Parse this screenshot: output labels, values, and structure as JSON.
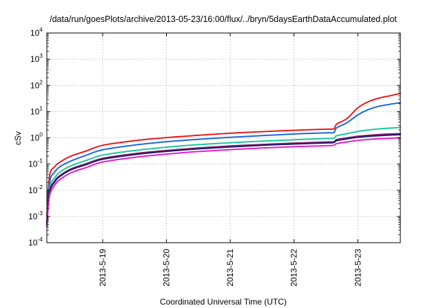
{
  "chart_data": {
    "type": "line",
    "title": "/data/run/goesPlots/archive/2013-05-23/16:00/flux/../bryn/5daysEarthDataAccumulated.plot",
    "xlabel": "Coordinated Universal Time (UTC)",
    "ylabel": "cSv",
    "x_axis": "date",
    "xlim": [
      "2013-05-18T03:00",
      "2013-05-23T16:00"
    ],
    "x_ticks": [
      "2013-5-19",
      "2013-5-20",
      "2013-5-21",
      "2013-5-22",
      "2013-5-23"
    ],
    "x_tick_dates": [
      "2013-05-19T00:00",
      "2013-05-20T00:00",
      "2013-05-21T00:00",
      "2013-05-22T00:00",
      "2013-05-23T00:00"
    ],
    "y_scale": "log",
    "ylim": [
      0.0001,
      10000
    ],
    "y_ticks": [
      {
        "base": "10",
        "exp": "-4"
      },
      {
        "base": "10",
        "exp": "-3"
      },
      {
        "base": "10",
        "exp": "-2"
      },
      {
        "base": "10",
        "exp": "-1"
      },
      {
        "base": "10",
        "exp": "0"
      },
      {
        "base": "10",
        "exp": "1"
      },
      {
        "base": "10",
        "exp": "2"
      },
      {
        "base": "10",
        "exp": "3"
      },
      {
        "base": "10",
        "exp": "4"
      }
    ],
    "grid": true,
    "legend": "none",
    "series": [
      {
        "color": "#e8191b",
        "points": [
          [
            "2013-05-18T03:00",
            0.001
          ],
          [
            "2013-05-18T04:00",
            0.035
          ],
          [
            "2013-05-18T06:00",
            0.08
          ],
          [
            "2013-05-18T08:00",
            0.12
          ],
          [
            "2013-05-18T12:00",
            0.2
          ],
          [
            "2013-05-18T18:00",
            0.32
          ],
          [
            "2013-05-19T00:00",
            0.52
          ],
          [
            "2013-05-19T12:00",
            0.78
          ],
          [
            "2013-05-20T00:00",
            1.02
          ],
          [
            "2013-05-20T12:00",
            1.25
          ],
          [
            "2013-05-21T00:00",
            1.5
          ],
          [
            "2013-05-21T12:00",
            1.72
          ],
          [
            "2013-05-22T00:00",
            1.95
          ],
          [
            "2013-05-22T12:00",
            2.15
          ],
          [
            "2013-05-22T15:00",
            2.2
          ],
          [
            "2013-05-22T16:00",
            3.3
          ],
          [
            "2013-05-22T20:00",
            5.5
          ],
          [
            "2013-05-23T00:00",
            14
          ],
          [
            "2013-05-23T04:00",
            24
          ],
          [
            "2013-05-23T08:00",
            33
          ],
          [
            "2013-05-23T12:00",
            40
          ],
          [
            "2013-05-23T16:00",
            50
          ]
        ]
      },
      {
        "color": "#1a67e0",
        "points": [
          [
            "2013-05-18T03:00",
            0.0006
          ],
          [
            "2013-05-18T04:00",
            0.02
          ],
          [
            "2013-05-18T06:00",
            0.05
          ],
          [
            "2013-05-18T08:00",
            0.08
          ],
          [
            "2013-05-18T12:00",
            0.13
          ],
          [
            "2013-05-18T18:00",
            0.22
          ],
          [
            "2013-05-19T00:00",
            0.35
          ],
          [
            "2013-05-19T12:00",
            0.53
          ],
          [
            "2013-05-20T00:00",
            0.71
          ],
          [
            "2013-05-20T12:00",
            0.88
          ],
          [
            "2013-05-21T00:00",
            1.05
          ],
          [
            "2013-05-21T12:00",
            1.22
          ],
          [
            "2013-05-22T00:00",
            1.4
          ],
          [
            "2013-05-22T12:00",
            1.55
          ],
          [
            "2013-05-22T15:00",
            1.6
          ],
          [
            "2013-05-22T16:00",
            2.4
          ],
          [
            "2013-05-22T20:00",
            3.8
          ],
          [
            "2013-05-23T00:00",
            7.5
          ],
          [
            "2013-05-23T04:00",
            12
          ],
          [
            "2013-05-23T08:00",
            16
          ],
          [
            "2013-05-23T12:00",
            19
          ],
          [
            "2013-05-23T16:00",
            22
          ]
        ]
      },
      {
        "color": "#19c79b",
        "points": [
          [
            "2013-05-18T03:00",
            0.0005
          ],
          [
            "2013-05-18T04:00",
            0.012
          ],
          [
            "2013-05-18T06:00",
            0.03
          ],
          [
            "2013-05-18T08:00",
            0.05
          ],
          [
            "2013-05-18T12:00",
            0.085
          ],
          [
            "2013-05-18T18:00",
            0.14
          ],
          [
            "2013-05-19T00:00",
            0.22
          ],
          [
            "2013-05-19T12:00",
            0.33
          ],
          [
            "2013-05-20T00:00",
            0.44
          ],
          [
            "2013-05-20T12:00",
            0.55
          ],
          [
            "2013-05-21T00:00",
            0.65
          ],
          [
            "2013-05-21T12:00",
            0.75
          ],
          [
            "2013-05-22T00:00",
            0.85
          ],
          [
            "2013-05-22T12:00",
            0.94
          ],
          [
            "2013-05-22T15:00",
            0.97
          ],
          [
            "2013-05-22T16:00",
            1.2
          ],
          [
            "2013-05-22T20:00",
            1.45
          ],
          [
            "2013-05-23T00:00",
            1.75
          ],
          [
            "2013-05-23T04:00",
            2.0
          ],
          [
            "2013-05-23T08:00",
            2.2
          ],
          [
            "2013-05-23T12:00",
            2.35
          ],
          [
            "2013-05-23T16:00",
            2.5
          ]
        ]
      },
      {
        "color": "#8a1a5e",
        "points": [
          [
            "2013-05-18T03:00",
            0.0005
          ],
          [
            "2013-05-18T04:00",
            0.009
          ],
          [
            "2013-05-18T06:00",
            0.023
          ],
          [
            "2013-05-18T08:00",
            0.037
          ],
          [
            "2013-05-18T12:00",
            0.065
          ],
          [
            "2013-05-18T18:00",
            0.105
          ],
          [
            "2013-05-19T00:00",
            0.165
          ],
          [
            "2013-05-19T12:00",
            0.25
          ],
          [
            "2013-05-20T00:00",
            0.33
          ],
          [
            "2013-05-20T12:00",
            0.41
          ],
          [
            "2013-05-21T00:00",
            0.49
          ],
          [
            "2013-05-21T12:00",
            0.56
          ],
          [
            "2013-05-22T00:00",
            0.63
          ],
          [
            "2013-05-22T12:00",
            0.69
          ],
          [
            "2013-05-22T15:00",
            0.71
          ],
          [
            "2013-05-22T16:00",
            0.85
          ],
          [
            "2013-05-22T20:00",
            1.0
          ],
          [
            "2013-05-23T00:00",
            1.15
          ],
          [
            "2013-05-23T04:00",
            1.25
          ],
          [
            "2013-05-23T08:00",
            1.33
          ],
          [
            "2013-05-23T12:00",
            1.4
          ],
          [
            "2013-05-23T16:00",
            1.45
          ]
        ]
      },
      {
        "color": "#1c1c78",
        "points": [
          [
            "2013-05-18T03:00",
            0.0005
          ],
          [
            "2013-05-18T04:00",
            0.008
          ],
          [
            "2013-05-18T06:00",
            0.021
          ],
          [
            "2013-05-18T08:00",
            0.034
          ],
          [
            "2013-05-18T12:00",
            0.06
          ],
          [
            "2013-05-18T18:00",
            0.097
          ],
          [
            "2013-05-19T00:00",
            0.152
          ],
          [
            "2013-05-19T12:00",
            0.23
          ],
          [
            "2013-05-20T00:00",
            0.305
          ],
          [
            "2013-05-20T12:00",
            0.38
          ],
          [
            "2013-05-21T00:00",
            0.45
          ],
          [
            "2013-05-21T12:00",
            0.52
          ],
          [
            "2013-05-22T00:00",
            0.58
          ],
          [
            "2013-05-22T12:00",
            0.64
          ],
          [
            "2013-05-22T15:00",
            0.66
          ],
          [
            "2013-05-22T16:00",
            0.78
          ],
          [
            "2013-05-22T20:00",
            0.92
          ],
          [
            "2013-05-23T00:00",
            1.05
          ],
          [
            "2013-05-23T04:00",
            1.14
          ],
          [
            "2013-05-23T08:00",
            1.21
          ],
          [
            "2013-05-23T12:00",
            1.27
          ],
          [
            "2013-05-23T16:00",
            1.32
          ]
        ]
      },
      {
        "color": "#e619c8",
        "points": [
          [
            "2013-05-18T03:00",
            0.0004
          ],
          [
            "2013-05-18T04:00",
            0.006
          ],
          [
            "2013-05-18T06:00",
            0.016
          ],
          [
            "2013-05-18T08:00",
            0.026
          ],
          [
            "2013-05-18T12:00",
            0.046
          ],
          [
            "2013-05-18T18:00",
            0.075
          ],
          [
            "2013-05-19T00:00",
            0.12
          ],
          [
            "2013-05-19T12:00",
            0.18
          ],
          [
            "2013-05-20T00:00",
            0.24
          ],
          [
            "2013-05-20T12:00",
            0.3
          ],
          [
            "2013-05-21T00:00",
            0.355
          ],
          [
            "2013-05-21T12:00",
            0.41
          ],
          [
            "2013-05-22T00:00",
            0.46
          ],
          [
            "2013-05-22T12:00",
            0.5
          ],
          [
            "2013-05-22T15:00",
            0.52
          ],
          [
            "2013-05-22T16:00",
            0.6
          ],
          [
            "2013-05-22T20:00",
            0.7
          ],
          [
            "2013-05-23T00:00",
            0.8
          ],
          [
            "2013-05-23T04:00",
            0.87
          ],
          [
            "2013-05-23T08:00",
            0.92
          ],
          [
            "2013-05-23T12:00",
            0.96
          ],
          [
            "2013-05-23T16:00",
            1.0
          ]
        ]
      }
    ]
  }
}
